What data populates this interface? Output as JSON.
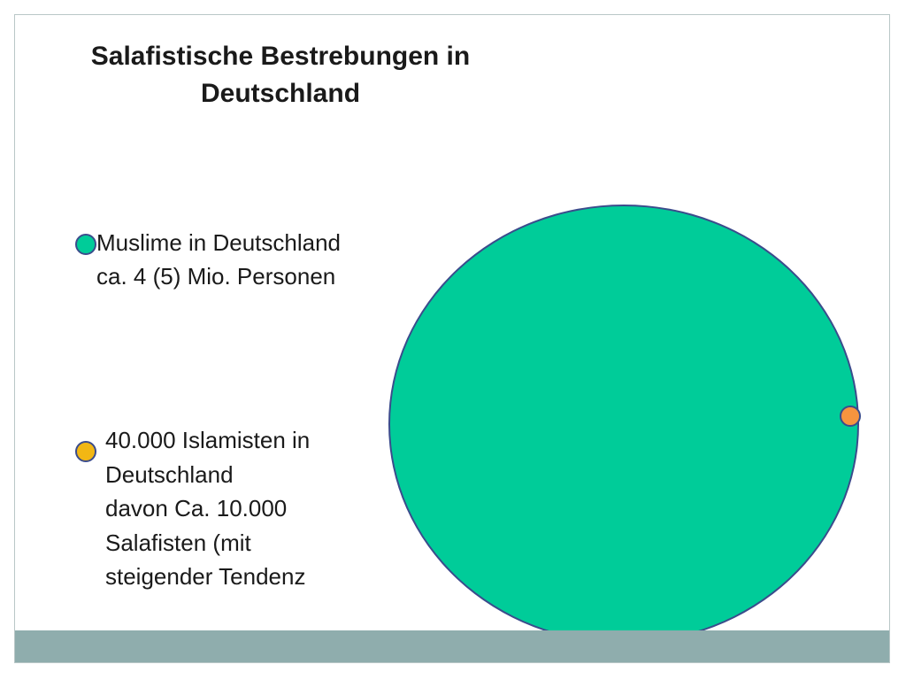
{
  "title": "Salafistische Bestrebungen in Deutschland",
  "legend": {
    "muslims": {
      "line1": "Muslime in Deutschland",
      "line2": "ca. 4 (5) Mio. Personen",
      "color": "#00cc99"
    },
    "islamists": {
      "line1": "40.000 Islamisten in",
      "line2": "Deutschland",
      "line3": "davon Ca. 10.000",
      "line4": "Salafisten (mit",
      "line5": "steigender Tendenz",
      "color": "#f2b714"
    }
  },
  "diagram": {
    "big_circle_color": "#00cc99",
    "small_dot_color": "#f7943f",
    "outline_color": "#3b4c8c"
  },
  "footer_color": "#8fadad"
}
